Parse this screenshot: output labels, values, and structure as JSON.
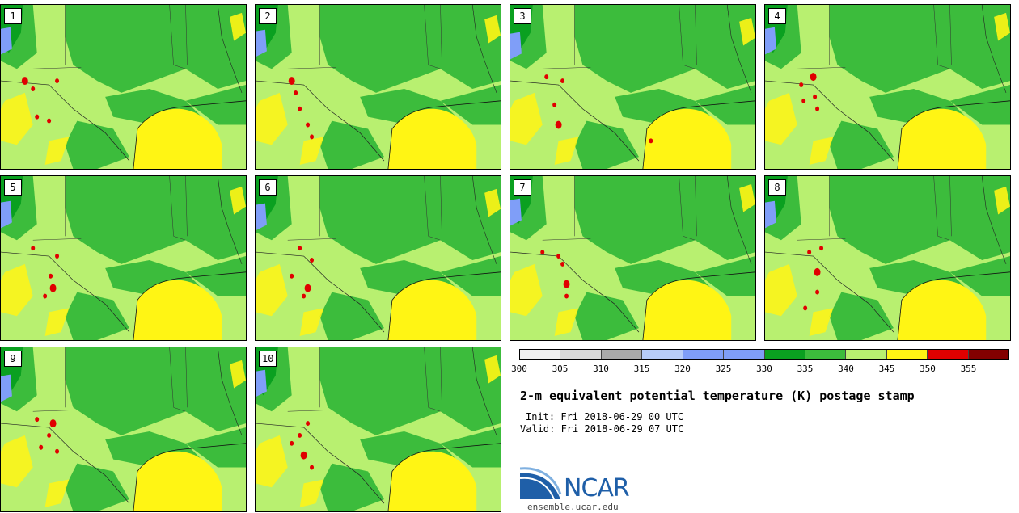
{
  "members": [
    {
      "label": "1",
      "hot": [
        [
          30,
          95
        ],
        [
          45,
          140
        ],
        [
          60,
          145
        ],
        [
          40,
          105
        ],
        [
          70,
          95
        ]
      ]
    },
    {
      "label": "2",
      "hot": [
        [
          45,
          95
        ],
        [
          65,
          150
        ],
        [
          70,
          165
        ],
        [
          55,
          130
        ],
        [
          50,
          110
        ]
      ]
    },
    {
      "label": "3",
      "hot": [
        [
          60,
          150
        ],
        [
          175,
          170
        ],
        [
          45,
          90
        ],
        [
          65,
          95
        ],
        [
          55,
          125
        ]
      ]
    },
    {
      "label": "4",
      "hot": [
        [
          60,
          90
        ],
        [
          48,
          120
        ],
        [
          45,
          100
        ],
        [
          65,
          130
        ],
        [
          62,
          115
        ]
      ]
    },
    {
      "label": "5",
      "hot": [
        [
          65,
          140
        ],
        [
          62,
          125
        ],
        [
          40,
          90
        ],
        [
          70,
          100
        ],
        [
          55,
          150
        ]
      ]
    },
    {
      "label": "6",
      "hot": [
        [
          65,
          140
        ],
        [
          70,
          105
        ],
        [
          45,
          125
        ],
        [
          55,
          90
        ],
        [
          60,
          150
        ]
      ]
    },
    {
      "label": "7",
      "hot": [
        [
          70,
          135
        ],
        [
          40,
          95
        ],
        [
          65,
          110
        ],
        [
          60,
          100
        ],
        [
          70,
          150
        ]
      ]
    },
    {
      "label": "8",
      "hot": [
        [
          65,
          120
        ],
        [
          65,
          145
        ],
        [
          55,
          95
        ],
        [
          50,
          165
        ],
        [
          70,
          90
        ]
      ]
    },
    {
      "label": "9",
      "hot": [
        [
          65,
          95
        ],
        [
          45,
          90
        ],
        [
          70,
          130
        ],
        [
          60,
          110
        ],
        [
          50,
          125
        ]
      ]
    },
    {
      "label": "10",
      "hot": [
        [
          60,
          135
        ],
        [
          65,
          95
        ],
        [
          45,
          120
        ],
        [
          70,
          150
        ],
        [
          55,
          110
        ]
      ]
    }
  ],
  "legend": {
    "ticks": [
      "300",
      "305",
      "310",
      "315",
      "320",
      "325",
      "330",
      "335",
      "340",
      "345",
      "350",
      "355"
    ],
    "colors": [
      "#f0f0f0",
      "#d9d9d9",
      "#aaaaaa",
      "#b8cdf8",
      "#7f9ef8",
      "#7f9ef8",
      "#0aa020",
      "#3cbc3c",
      "#b8f070",
      "#fff514",
      "#e00000",
      "#820000"
    ]
  },
  "title": "2-m equivalent potential temperature (K) postage stamp",
  "init": "Init: Fri 2018-06-29 00 UTC",
  "valid": "Valid: Fri 2018-06-29 07 UTC",
  "logo": {
    "name": "NCAR",
    "url": "ensemble.ucar.edu"
  }
}
